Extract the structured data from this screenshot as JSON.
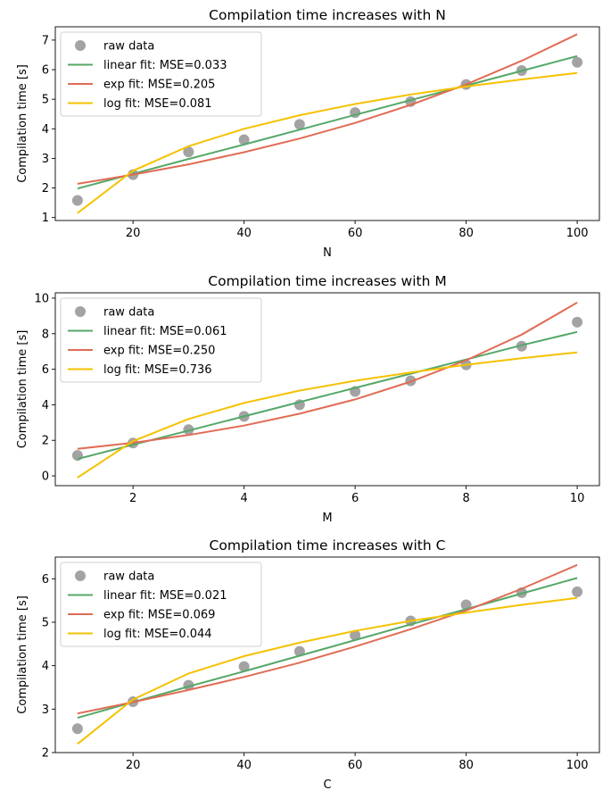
{
  "colors": {
    "raw": "#a3a3a3",
    "linear": "#55a868",
    "exp": "#e06c55",
    "log": "#f5c200"
  },
  "chart_data": [
    {
      "type": "line",
      "title": "Compilation time increases with N",
      "xlabel": "N",
      "ylabel": "Compilation time [s]",
      "xlim": [
        6,
        104
      ],
      "ylim": [
        0.9,
        7.45
      ],
      "xticks": [
        "20",
        "40",
        "60",
        "80",
        "100"
      ],
      "yticks": [
        "1",
        "2",
        "3",
        "4",
        "5",
        "6",
        "7"
      ],
      "x": [
        10,
        20,
        30,
        40,
        50,
        60,
        70,
        80,
        90,
        100
      ],
      "series": [
        {
          "name": "raw data",
          "kind": "scatter",
          "color_key": "raw",
          "values": [
            1.58,
            2.45,
            3.22,
            3.63,
            4.15,
            4.55,
            4.92,
            5.5,
            5.97,
            6.25
          ]
        },
        {
          "name": "linear fit: MSE=0.033",
          "kind": "line",
          "color_key": "linear",
          "values": [
            1.98,
            2.48,
            2.98,
            3.47,
            3.97,
            4.47,
            4.97,
            5.46,
            5.96,
            6.46
          ]
        },
        {
          "name": "exp fit: MSE=0.205",
          "kind": "line",
          "color_key": "exp",
          "values": [
            2.14,
            2.45,
            2.8,
            3.21,
            3.67,
            4.2,
            4.81,
            5.5,
            6.3,
            7.2
          ]
        },
        {
          "name": "log fit: MSE=0.081",
          "kind": "line",
          "color_key": "log",
          "values": [
            1.15,
            2.58,
            3.41,
            4.0,
            4.46,
            4.84,
            5.16,
            5.43,
            5.67,
            5.89
          ]
        }
      ]
    },
    {
      "type": "line",
      "title": "Compilation time increases with M",
      "xlabel": "M",
      "ylabel": "Compilation time [s]",
      "xlim": [
        0.6,
        10.4
      ],
      "ylim": [
        -0.55,
        10.3
      ],
      "xticks": [
        "2",
        "4",
        "6",
        "8",
        "10"
      ],
      "yticks": [
        "0",
        "2",
        "4",
        "6",
        "8",
        "10"
      ],
      "x": [
        1,
        2,
        3,
        4,
        5,
        6,
        7,
        8,
        9,
        10
      ],
      "series": [
        {
          "name": "raw data",
          "kind": "scatter",
          "color_key": "raw",
          "values": [
            1.15,
            1.85,
            2.6,
            3.35,
            4.0,
            4.75,
            5.35,
            6.25,
            7.3,
            8.65
          ]
        },
        {
          "name": "linear fit: MSE=0.061",
          "kind": "line",
          "color_key": "linear",
          "values": [
            0.95,
            1.75,
            2.55,
            3.35,
            4.15,
            4.95,
            5.75,
            6.55,
            7.35,
            8.1
          ]
        },
        {
          "name": "exp fit: MSE=0.250",
          "kind": "line",
          "color_key": "exp",
          "values": [
            1.52,
            1.86,
            2.3,
            2.83,
            3.5,
            4.3,
            5.3,
            6.5,
            7.95,
            9.75
          ]
        },
        {
          "name": "log fit: MSE=0.736",
          "kind": "line",
          "color_key": "log",
          "values": [
            -0.1,
            1.95,
            3.2,
            4.1,
            4.8,
            5.35,
            5.82,
            6.25,
            6.62,
            6.95
          ]
        }
      ]
    },
    {
      "type": "line",
      "title": "Compilation time increases with C",
      "xlabel": "C",
      "ylabel": "Compilation time [s]",
      "xlim": [
        6,
        104
      ],
      "ylim": [
        2.0,
        6.5
      ],
      "xticks": [
        "20",
        "40",
        "60",
        "80",
        "100"
      ],
      "yticks": [
        "2",
        "3",
        "4",
        "5",
        "6"
      ],
      "x": [
        10,
        20,
        30,
        40,
        50,
        60,
        70,
        80,
        90,
        100
      ],
      "series": [
        {
          "name": "raw data",
          "kind": "scatter",
          "color_key": "raw",
          "values": [
            2.55,
            3.17,
            3.55,
            3.98,
            4.33,
            4.7,
            5.03,
            5.4,
            5.68,
            5.7
          ]
        },
        {
          "name": "linear fit: MSE=0.021",
          "kind": "line",
          "color_key": "linear",
          "values": [
            2.8,
            3.16,
            3.52,
            3.87,
            4.23,
            4.59,
            4.95,
            5.3,
            5.66,
            6.02
          ]
        },
        {
          "name": "exp fit: MSE=0.069",
          "kind": "line",
          "color_key": "exp",
          "values": [
            2.9,
            3.16,
            3.44,
            3.74,
            4.07,
            4.44,
            4.84,
            5.27,
            5.77,
            6.32
          ]
        },
        {
          "name": "log fit: MSE=0.044",
          "kind": "line",
          "color_key": "log",
          "values": [
            2.2,
            3.22,
            3.82,
            4.22,
            4.53,
            4.8,
            5.03,
            5.22,
            5.4,
            5.56
          ]
        }
      ]
    }
  ]
}
